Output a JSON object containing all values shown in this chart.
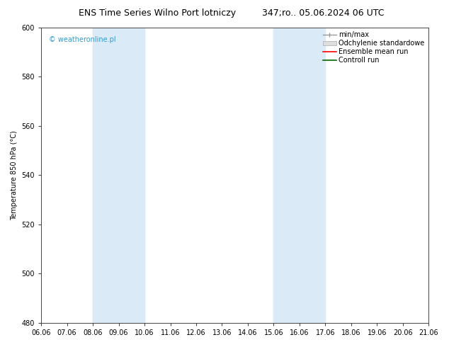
{
  "title_left": "ENS Time Series Wilno Port lotniczy",
  "title_right": "347;ro.. 05.06.2024 06 UTC",
  "ylabel": "Temperature 850 hPa (°C)",
  "ylim": [
    480,
    600
  ],
  "yticks": [
    480,
    500,
    520,
    540,
    560,
    580,
    600
  ],
  "xtick_labels": [
    "06.06",
    "07.06",
    "08.06",
    "09.06",
    "10.06",
    "11.06",
    "12.06",
    "13.06",
    "14.06",
    "15.06",
    "16.06",
    "17.06",
    "18.06",
    "19.06",
    "20.06",
    "21.06"
  ],
  "shade_bands": [
    {
      "xstart": 2,
      "xend": 4,
      "color": "#daeaf7"
    },
    {
      "xstart": 9,
      "xend": 11,
      "color": "#daeaf7"
    }
  ],
  "watermark": "© weatheronline.pl",
  "bg_color": "#ffffff",
  "title_fontsize": 9,
  "tick_fontsize": 7,
  "ylabel_fontsize": 7,
  "legend_fontsize": 7,
  "watermark_color": "#3399cc"
}
